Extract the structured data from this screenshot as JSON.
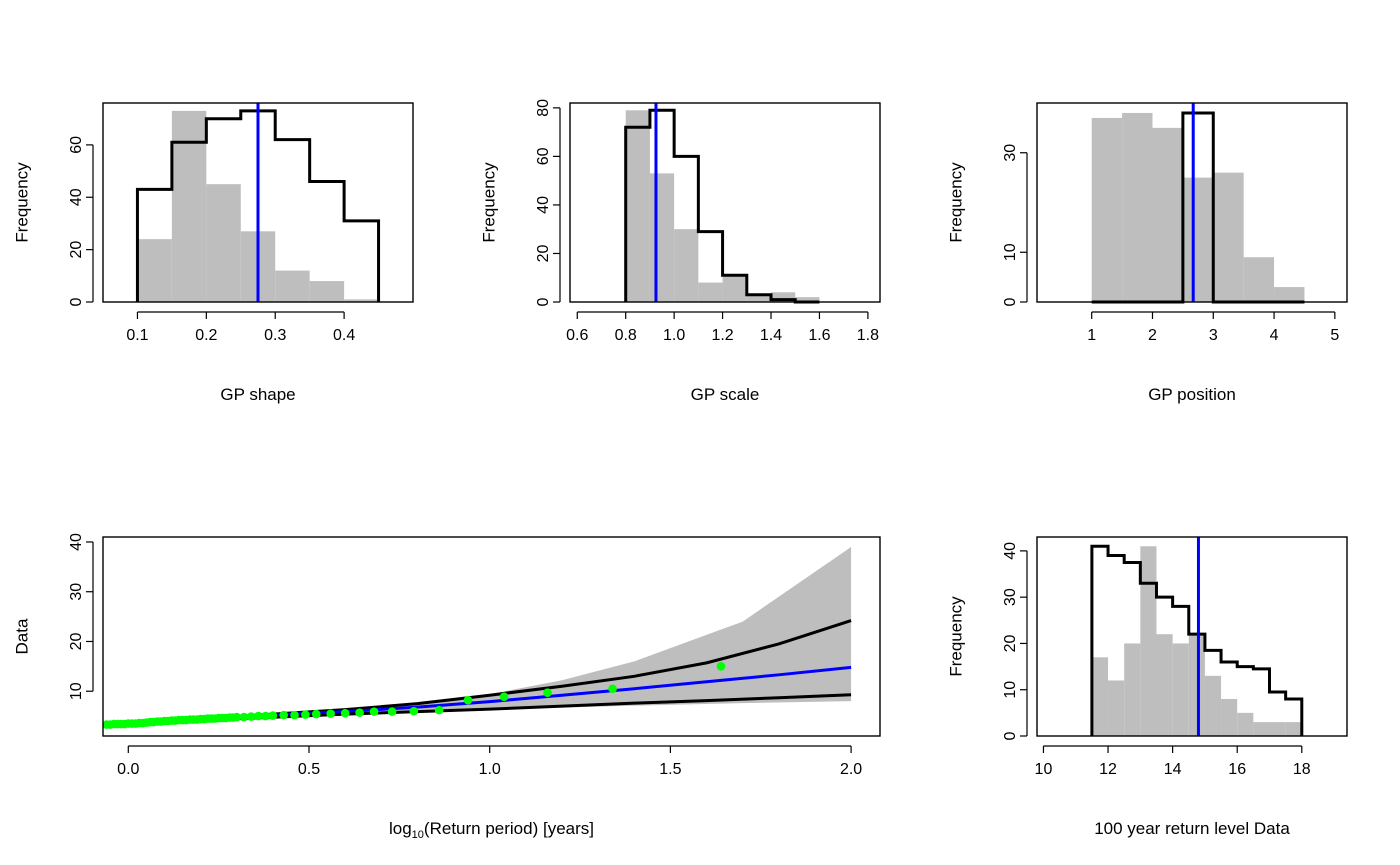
{
  "chart_data": [
    {
      "id": "gp-shape",
      "type": "histogram",
      "xlabel": "GP shape",
      "ylabel": "Frequency",
      "xlim": [
        0.05,
        0.5
      ],
      "ylim": [
        0,
        76
      ],
      "xticks": [
        0.1,
        0.2,
        0.3,
        0.4
      ],
      "yticks": [
        0,
        20,
        40,
        60
      ],
      "bins": {
        "breaks": [
          0.1,
          0.15,
          0.2,
          0.25,
          0.3,
          0.35,
          0.4,
          0.45
        ],
        "gray": [
          24,
          73,
          45,
          27,
          12,
          8,
          1
        ],
        "black": [
          43,
          61,
          70,
          73,
          62,
          46,
          31
        ]
      },
      "vline": 0.275,
      "colors": {
        "gray": "#bebebe",
        "line": "#000000",
        "vline": "#0000ff"
      }
    },
    {
      "id": "gp-scale",
      "type": "histogram",
      "xlabel": "GP scale",
      "ylabel": "Frequency",
      "xlim": [
        0.57,
        1.85
      ],
      "ylim": [
        0,
        82
      ],
      "xticks": [
        0.6,
        0.8,
        1.0,
        1.2,
        1.4,
        1.6,
        1.8
      ],
      "yticks": [
        0,
        20,
        40,
        60,
        80
      ],
      "bins": {
        "breaks": [
          0.8,
          0.9,
          1.0,
          1.1,
          1.2,
          1.3,
          1.4,
          1.5,
          1.6
        ],
        "gray": [
          79,
          53,
          30,
          8,
          11,
          3,
          4,
          2
        ],
        "black": [
          72,
          79,
          60,
          29,
          11,
          3,
          1,
          0
        ]
      },
      "vline": 0.925,
      "colors": {
        "gray": "#bebebe",
        "line": "#000000",
        "vline": "#0000ff"
      }
    },
    {
      "id": "gp-position",
      "type": "histogram",
      "xlabel": "GP position",
      "ylabel": "Frequency",
      "xlim": [
        0.1,
        5.2
      ],
      "ylim": [
        0,
        40
      ],
      "xticks": [
        1,
        2,
        3,
        4,
        5
      ],
      "yticks": [
        0,
        10,
        30
      ],
      "bins": {
        "breaks": [
          1.0,
          1.5,
          2.0,
          2.5,
          3.0,
          3.5,
          4.0,
          4.5
        ],
        "gray": [
          37,
          38,
          35,
          25,
          26,
          9,
          3
        ],
        "black": [
          0,
          0,
          0,
          38,
          0,
          0,
          0
        ]
      },
      "vline": 2.67,
      "colors": {
        "gray": "#bebebe",
        "line": "#000000",
        "vline": "#0000ff"
      }
    },
    {
      "id": "return-level",
      "type": "line",
      "xlabel": "log10(Return period) [years]",
      "ylabel": "Data",
      "xlim": [
        -0.07,
        2.08
      ],
      "ylim": [
        1,
        41
      ],
      "xticks": [
        0.0,
        0.5,
        1.0,
        1.5,
        2.0
      ],
      "yticks": [
        10,
        20,
        30,
        40
      ],
      "band": {
        "x": [
          -0.05,
          0.2,
          0.4,
          0.6,
          0.8,
          1.0,
          1.2,
          1.4,
          1.7,
          2.0
        ],
        "upper": [
          3.7,
          4.3,
          5.1,
          6.2,
          7.6,
          9.4,
          12.2,
          16.0,
          24.0,
          39.0
        ],
        "lower": [
          3.3,
          3.8,
          4.4,
          5.1,
          5.7,
          6.2,
          6.7,
          7.1,
          7.6,
          8.0
        ]
      },
      "series": [
        {
          "role": "upper",
          "color": "#000000",
          "x": [
            -0.05,
            0.2,
            0.4,
            0.6,
            0.8,
            1.0,
            1.2,
            1.4,
            1.6,
            1.8,
            2.0
          ],
          "y": [
            3.7,
            4.5,
            5.4,
            6.3,
            7.5,
            9.2,
            11.0,
            13.0,
            15.7,
            19.5,
            24.2
          ]
        },
        {
          "role": "center",
          "color": "#0000ff",
          "x": [
            -0.05,
            0.2,
            0.4,
            0.6,
            0.8,
            1.0,
            1.2,
            1.4,
            1.6,
            1.8,
            2.0
          ],
          "y": [
            3.6,
            4.4,
            5.2,
            5.9,
            6.8,
            7.9,
            9.2,
            10.5,
            11.9,
            13.3,
            14.8
          ]
        },
        {
          "role": "lower",
          "color": "#000000",
          "x": [
            -0.05,
            0.2,
            0.4,
            0.6,
            0.8,
            1.0,
            1.2,
            1.4,
            1.6,
            1.8,
            2.0
          ],
          "y": [
            3.5,
            4.2,
            4.8,
            5.4,
            5.9,
            6.4,
            7.0,
            7.6,
            8.1,
            8.7,
            9.3
          ]
        }
      ],
      "points": {
        "color": "#00ff00",
        "x": [
          -0.06,
          -0.05,
          -0.04,
          -0.03,
          -0.02,
          -0.01,
          0.0,
          0.01,
          0.02,
          0.03,
          0.04,
          0.05,
          0.06,
          0.07,
          0.08,
          0.09,
          0.1,
          0.11,
          0.12,
          0.13,
          0.14,
          0.15,
          0.16,
          0.17,
          0.18,
          0.19,
          0.2,
          0.21,
          0.22,
          0.23,
          0.24,
          0.25,
          0.26,
          0.27,
          0.28,
          0.29,
          0.3,
          0.32,
          0.34,
          0.36,
          0.38,
          0.4,
          0.43,
          0.46,
          0.49,
          0.52,
          0.56,
          0.6,
          0.64,
          0.68,
          0.73,
          0.79,
          0.86,
          0.94,
          1.04,
          1.16,
          1.34,
          1.64
        ],
        "y": [
          3.3,
          3.3,
          3.4,
          3.4,
          3.4,
          3.4,
          3.5,
          3.5,
          3.5,
          3.6,
          3.6,
          3.7,
          3.8,
          3.8,
          3.9,
          3.9,
          4.0,
          4.0,
          4.1,
          4.1,
          4.2,
          4.2,
          4.2,
          4.3,
          4.3,
          4.3,
          4.4,
          4.4,
          4.5,
          4.5,
          4.5,
          4.6,
          4.6,
          4.6,
          4.7,
          4.7,
          4.8,
          4.8,
          4.9,
          5.0,
          5.0,
          5.1,
          5.2,
          5.2,
          5.3,
          5.4,
          5.5,
          5.6,
          5.7,
          5.9,
          5.9,
          6.0,
          6.2,
          8.2,
          8.9,
          9.7,
          10.5,
          15.0
        ]
      }
    },
    {
      "id": "return-level-hist",
      "type": "histogram",
      "xlabel": "100 year return level Data",
      "ylabel": "Frequency",
      "xlim": [
        9.8,
        19.4
      ],
      "ylim": [
        0,
        43
      ],
      "xticks": [
        10,
        12,
        14,
        16,
        18
      ],
      "yticks": [
        0,
        10,
        20,
        30,
        40
      ],
      "bins": {
        "breaks": [
          11.5,
          12.0,
          12.5,
          13.0,
          13.5,
          14.0,
          14.5,
          15.0,
          15.5,
          16.0,
          16.5,
          17.0,
          17.5,
          18.0
        ],
        "gray": [
          17,
          12,
          20,
          41,
          22,
          20,
          22,
          13,
          8,
          5,
          3,
          3,
          3
        ],
        "black": [
          41,
          39,
          37.5,
          33,
          30,
          28,
          22,
          18.5,
          16,
          15,
          14.5,
          9.5,
          8
        ]
      },
      "vline": 14.8,
      "colors": {
        "gray": "#bebebe",
        "line": "#000000",
        "vline": "#0000ff"
      }
    }
  ]
}
